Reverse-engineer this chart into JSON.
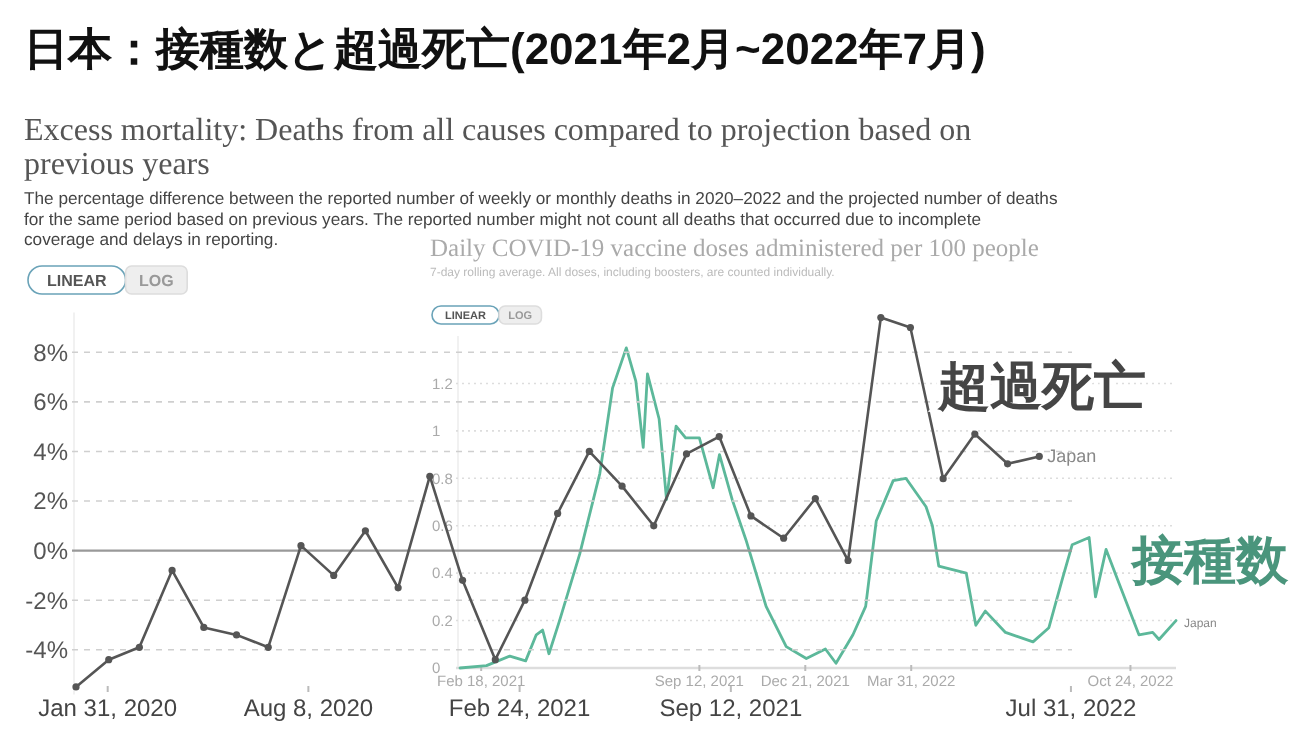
{
  "chart_data": [
    {
      "type": "other",
      "title": "日本：接種数と超過死亡(2021年2月~2022年7月)"
    },
    {
      "type": "line",
      "title": "Excess mortality: Deaths from all causes compared to projection based on previous years",
      "subtitle": "The percentage difference between the reported number of weekly or monthly deaths in 2020–2022 and the projected number of deaths for the same period based on previous years. The reported number might not count all deaths that occurred due to incomplete coverage and delays in reporting.",
      "annotations": [
        "LINEAR",
        "LOG",
        "超過死亡"
      ],
      "x": [
        "2020-01",
        "2020-02",
        "2020-03",
        "2020-04",
        "2020-05",
        "2020-06",
        "2020-07",
        "2020-08",
        "2020-09",
        "2020-10",
        "2020-11",
        "2020-12",
        "2021-01",
        "2021-02",
        "2021-03",
        "2021-04",
        "2021-05",
        "2021-06",
        "2021-07",
        "2021-08",
        "2021-09",
        "2021-10",
        "2021-11",
        "2021-12",
        "2022-01",
        "2022-02",
        "2022-03",
        "2022-04",
        "2022-05",
        "2022-06",
        "2022-07"
      ],
      "series": [
        {
          "name": "Japan",
          "color": "#555555",
          "values": [
            -5.5,
            -4.4,
            -3.9,
            -0.8,
            -3.1,
            -3.4,
            -3.9,
            0.2,
            -1.0,
            0.8,
            -1.5,
            3.0,
            -1.2,
            -4.4,
            -2.0,
            1.5,
            4.0,
            2.6,
            1.0,
            3.9,
            4.6,
            1.4,
            0.5,
            2.1,
            -0.4,
            9.4,
            9.0,
            2.9,
            4.7,
            3.5,
            3.8
          ]
        }
      ],
      "xlim": [
        "2020-01",
        "2022-08"
      ],
      "xticks": [
        {
          "value": "2020-01-31",
          "label": "Jan 31, 2020"
        },
        {
          "value": "2020-08-08",
          "label": "Aug 8, 2020"
        },
        {
          "value": "2021-02-24",
          "label": "Feb 24, 2021"
        },
        {
          "value": "2021-09-12",
          "label": "Sep 12, 2021"
        },
        {
          "value": "2022-07-31",
          "label": "Jul 31, 2022"
        }
      ],
      "ylim": [
        -5.8,
        9.6
      ],
      "yticks": [
        {
          "value": -4,
          "label": "-4%"
        },
        {
          "value": -2,
          "label": "-2%"
        },
        {
          "value": 0,
          "label": "0%"
        },
        {
          "value": 2,
          "label": "2%"
        },
        {
          "value": 4,
          "label": "4%"
        },
        {
          "value": 6,
          "label": "6%"
        },
        {
          "value": 8,
          "label": "8%"
        }
      ],
      "grid": "y",
      "marker": "circle",
      "line_style": "solid"
    },
    {
      "type": "line",
      "title": "Daily COVID-19 vaccine doses administered per 100 people",
      "subtitle": "7-day rolling average. All doses, including boosters, are counted individually.",
      "annotations": [
        "LINEAR",
        "LOG",
        "接種数"
      ],
      "x": [
        "2021-01-29",
        "2021-02-23",
        "2021-03-17",
        "2021-04-01",
        "2021-04-11",
        "2021-04-17",
        "2021-04-23",
        "2021-05-03",
        "2021-05-22",
        "2021-06-10",
        "2021-06-22",
        "2021-07-05",
        "2021-07-14",
        "2021-07-21",
        "2021-07-25",
        "2021-08-05",
        "2021-08-12",
        "2021-08-21",
        "2021-08-30",
        "2021-09-12",
        "2021-09-25",
        "2021-10-01",
        "2021-10-13",
        "2021-10-26",
        "2021-11-14",
        "2021-12-03",
        "2021-12-22",
        "2022-01-09",
        "2022-01-19",
        "2022-02-04",
        "2022-02-16",
        "2022-02-26",
        "2022-03-14",
        "2022-03-26",
        "2022-04-14",
        "2022-04-20",
        "2022-04-26",
        "2022-05-22",
        "2022-05-31",
        "2022-06-09",
        "2022-06-28",
        "2022-07-24",
        "2022-08-08",
        "2022-08-21",
        "2022-08-30",
        "2022-09-15",
        "2022-09-21",
        "2022-10-01",
        "2022-10-13",
        "2022-11-01",
        "2022-11-14",
        "2022-11-20",
        "2022-12-06"
      ],
      "series": [
        {
          "name": "Japan",
          "color": "#5cb89a",
          "values": [
            0,
            0.01,
            0.05,
            0.03,
            0.14,
            0.16,
            0.06,
            0.2,
            0.48,
            0.82,
            1.18,
            1.35,
            1.21,
            0.93,
            1.24,
            1.05,
            0.71,
            1.02,
            0.97,
            0.97,
            0.76,
            0.9,
            0.71,
            0.54,
            0.26,
            0.09,
            0.04,
            0.08,
            0.02,
            0.14,
            0.26,
            0.62,
            0.79,
            0.8,
            0.68,
            0.6,
            0.43,
            0.4,
            0.18,
            0.24,
            0.15,
            0.11,
            0.17,
            0.38,
            0.52,
            0.55,
            0.3,
            0.5,
            0.36,
            0.14,
            0.15,
            0.12,
            0.2
          ]
        }
      ],
      "xlim": [
        "2021-01-29",
        "2022-12-06"
      ],
      "xticks": [
        {
          "value": "2021-02-18",
          "label": "Feb 18, 2021"
        },
        {
          "value": "2021-09-12",
          "label": "Sep 12, 2021"
        },
        {
          "value": "2021-12-21",
          "label": "Dec 21, 2021"
        },
        {
          "value": "2022-03-31",
          "label": "Mar 31, 2022"
        },
        {
          "value": "2022-10-24",
          "label": "Oct 24, 2022"
        }
      ],
      "ylim": [
        0,
        1.4
      ],
      "yticks": [
        0,
        0.2,
        0.4,
        0.6,
        0.8,
        1,
        1.2
      ],
      "grid": "y",
      "marker": "none",
      "line_style": "solid"
    }
  ]
}
